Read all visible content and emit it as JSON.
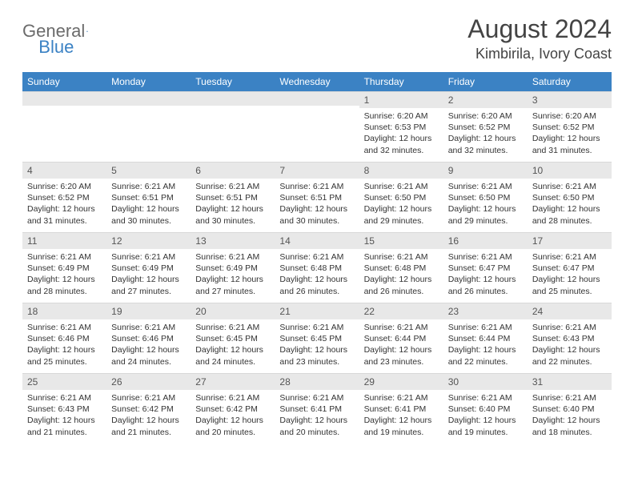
{
  "logo": {
    "text1": "General",
    "text2": "Blue"
  },
  "title": "August 2024",
  "location": "Kimbirila, Ivory Coast",
  "colors": {
    "header_bg": "#3b82c4",
    "header_text": "#ffffff",
    "daynum_bg": "#e8e8e8",
    "body_text": "#333333",
    "logo_gray": "#6b6b6b",
    "logo_blue": "#3b82c4"
  },
  "weekdays": [
    "Sunday",
    "Monday",
    "Tuesday",
    "Wednesday",
    "Thursday",
    "Friday",
    "Saturday"
  ],
  "weeks": [
    [
      {
        "n": "",
        "sr": "",
        "ss": "",
        "dl": ""
      },
      {
        "n": "",
        "sr": "",
        "ss": "",
        "dl": ""
      },
      {
        "n": "",
        "sr": "",
        "ss": "",
        "dl": ""
      },
      {
        "n": "",
        "sr": "",
        "ss": "",
        "dl": ""
      },
      {
        "n": "1",
        "sr": "Sunrise: 6:20 AM",
        "ss": "Sunset: 6:53 PM",
        "dl": "Daylight: 12 hours and 32 minutes."
      },
      {
        "n": "2",
        "sr": "Sunrise: 6:20 AM",
        "ss": "Sunset: 6:52 PM",
        "dl": "Daylight: 12 hours and 32 minutes."
      },
      {
        "n": "3",
        "sr": "Sunrise: 6:20 AM",
        "ss": "Sunset: 6:52 PM",
        "dl": "Daylight: 12 hours and 31 minutes."
      }
    ],
    [
      {
        "n": "4",
        "sr": "Sunrise: 6:20 AM",
        "ss": "Sunset: 6:52 PM",
        "dl": "Daylight: 12 hours and 31 minutes."
      },
      {
        "n": "5",
        "sr": "Sunrise: 6:21 AM",
        "ss": "Sunset: 6:51 PM",
        "dl": "Daylight: 12 hours and 30 minutes."
      },
      {
        "n": "6",
        "sr": "Sunrise: 6:21 AM",
        "ss": "Sunset: 6:51 PM",
        "dl": "Daylight: 12 hours and 30 minutes."
      },
      {
        "n": "7",
        "sr": "Sunrise: 6:21 AM",
        "ss": "Sunset: 6:51 PM",
        "dl": "Daylight: 12 hours and 30 minutes."
      },
      {
        "n": "8",
        "sr": "Sunrise: 6:21 AM",
        "ss": "Sunset: 6:50 PM",
        "dl": "Daylight: 12 hours and 29 minutes."
      },
      {
        "n": "9",
        "sr": "Sunrise: 6:21 AM",
        "ss": "Sunset: 6:50 PM",
        "dl": "Daylight: 12 hours and 29 minutes."
      },
      {
        "n": "10",
        "sr": "Sunrise: 6:21 AM",
        "ss": "Sunset: 6:50 PM",
        "dl": "Daylight: 12 hours and 28 minutes."
      }
    ],
    [
      {
        "n": "11",
        "sr": "Sunrise: 6:21 AM",
        "ss": "Sunset: 6:49 PM",
        "dl": "Daylight: 12 hours and 28 minutes."
      },
      {
        "n": "12",
        "sr": "Sunrise: 6:21 AM",
        "ss": "Sunset: 6:49 PM",
        "dl": "Daylight: 12 hours and 27 minutes."
      },
      {
        "n": "13",
        "sr": "Sunrise: 6:21 AM",
        "ss": "Sunset: 6:49 PM",
        "dl": "Daylight: 12 hours and 27 minutes."
      },
      {
        "n": "14",
        "sr": "Sunrise: 6:21 AM",
        "ss": "Sunset: 6:48 PM",
        "dl": "Daylight: 12 hours and 26 minutes."
      },
      {
        "n": "15",
        "sr": "Sunrise: 6:21 AM",
        "ss": "Sunset: 6:48 PM",
        "dl": "Daylight: 12 hours and 26 minutes."
      },
      {
        "n": "16",
        "sr": "Sunrise: 6:21 AM",
        "ss": "Sunset: 6:47 PM",
        "dl": "Daylight: 12 hours and 26 minutes."
      },
      {
        "n": "17",
        "sr": "Sunrise: 6:21 AM",
        "ss": "Sunset: 6:47 PM",
        "dl": "Daylight: 12 hours and 25 minutes."
      }
    ],
    [
      {
        "n": "18",
        "sr": "Sunrise: 6:21 AM",
        "ss": "Sunset: 6:46 PM",
        "dl": "Daylight: 12 hours and 25 minutes."
      },
      {
        "n": "19",
        "sr": "Sunrise: 6:21 AM",
        "ss": "Sunset: 6:46 PM",
        "dl": "Daylight: 12 hours and 24 minutes."
      },
      {
        "n": "20",
        "sr": "Sunrise: 6:21 AM",
        "ss": "Sunset: 6:45 PM",
        "dl": "Daylight: 12 hours and 24 minutes."
      },
      {
        "n": "21",
        "sr": "Sunrise: 6:21 AM",
        "ss": "Sunset: 6:45 PM",
        "dl": "Daylight: 12 hours and 23 minutes."
      },
      {
        "n": "22",
        "sr": "Sunrise: 6:21 AM",
        "ss": "Sunset: 6:44 PM",
        "dl": "Daylight: 12 hours and 23 minutes."
      },
      {
        "n": "23",
        "sr": "Sunrise: 6:21 AM",
        "ss": "Sunset: 6:44 PM",
        "dl": "Daylight: 12 hours and 22 minutes."
      },
      {
        "n": "24",
        "sr": "Sunrise: 6:21 AM",
        "ss": "Sunset: 6:43 PM",
        "dl": "Daylight: 12 hours and 22 minutes."
      }
    ],
    [
      {
        "n": "25",
        "sr": "Sunrise: 6:21 AM",
        "ss": "Sunset: 6:43 PM",
        "dl": "Daylight: 12 hours and 21 minutes."
      },
      {
        "n": "26",
        "sr": "Sunrise: 6:21 AM",
        "ss": "Sunset: 6:42 PM",
        "dl": "Daylight: 12 hours and 21 minutes."
      },
      {
        "n": "27",
        "sr": "Sunrise: 6:21 AM",
        "ss": "Sunset: 6:42 PM",
        "dl": "Daylight: 12 hours and 20 minutes."
      },
      {
        "n": "28",
        "sr": "Sunrise: 6:21 AM",
        "ss": "Sunset: 6:41 PM",
        "dl": "Daylight: 12 hours and 20 minutes."
      },
      {
        "n": "29",
        "sr": "Sunrise: 6:21 AM",
        "ss": "Sunset: 6:41 PM",
        "dl": "Daylight: 12 hours and 19 minutes."
      },
      {
        "n": "30",
        "sr": "Sunrise: 6:21 AM",
        "ss": "Sunset: 6:40 PM",
        "dl": "Daylight: 12 hours and 19 minutes."
      },
      {
        "n": "31",
        "sr": "Sunrise: 6:21 AM",
        "ss": "Sunset: 6:40 PM",
        "dl": "Daylight: 12 hours and 18 minutes."
      }
    ]
  ]
}
